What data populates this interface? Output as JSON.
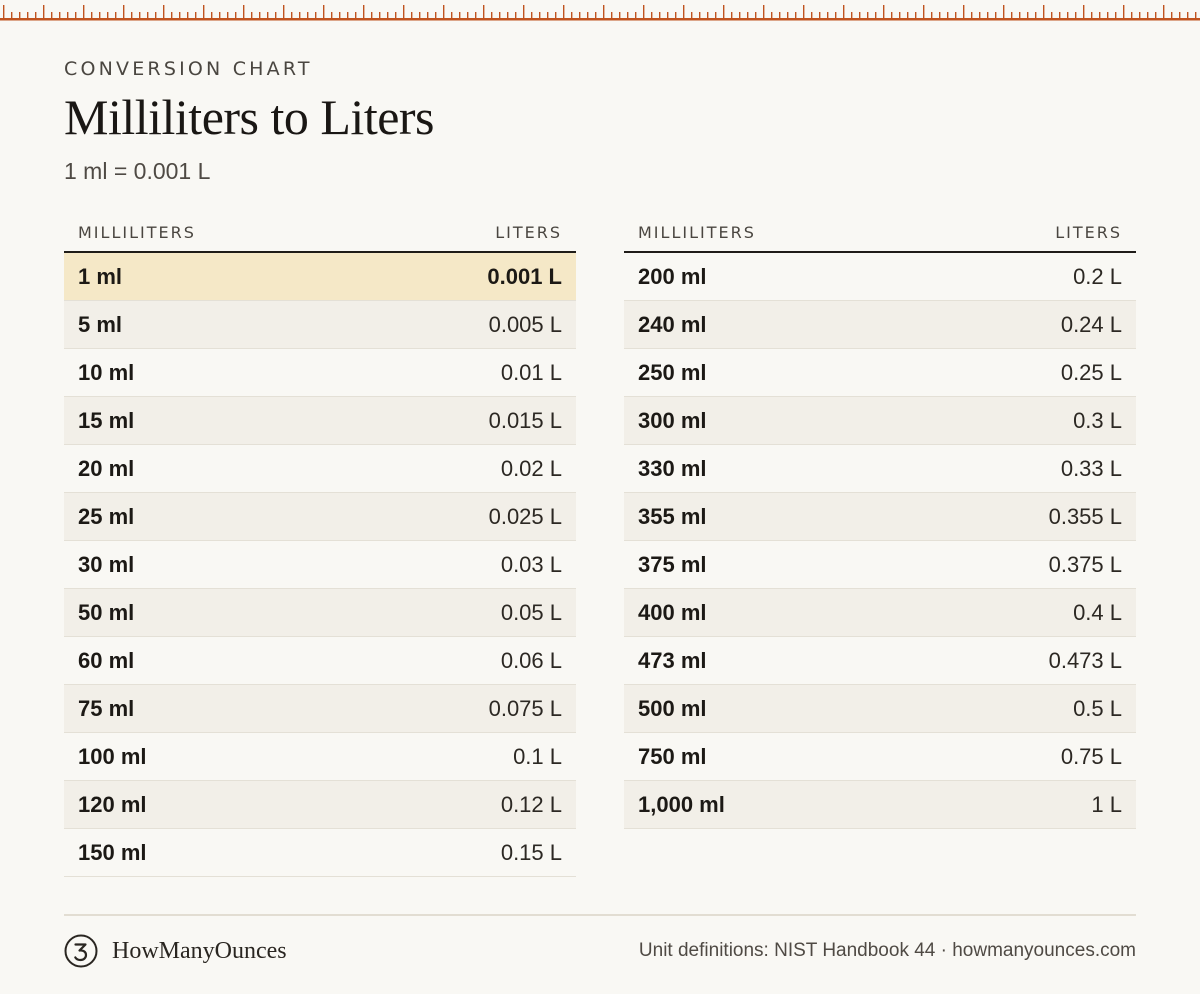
{
  "header": {
    "eyebrow": "CONVERSION CHART",
    "title": "Milliliters to Liters",
    "subtitle": "1 ml = 0.001 L"
  },
  "colors": {
    "accent": "#c0531f",
    "highlight": "#f5e8c7",
    "stripe": "#f2efe8",
    "background": "#f9f8f4"
  },
  "tables": {
    "left": {
      "col_ml": "MILLILITERS",
      "col_l": "LITERS",
      "rows": [
        {
          "ml": "1 ml",
          "l": "0.001 L"
        },
        {
          "ml": "5 ml",
          "l": "0.005 L"
        },
        {
          "ml": "10 ml",
          "l": "0.01 L"
        },
        {
          "ml": "15 ml",
          "l": "0.015 L"
        },
        {
          "ml": "20 ml",
          "l": "0.02 L"
        },
        {
          "ml": "25 ml",
          "l": "0.025 L"
        },
        {
          "ml": "30 ml",
          "l": "0.03 L"
        },
        {
          "ml": "50 ml",
          "l": "0.05 L"
        },
        {
          "ml": "60 ml",
          "l": "0.06 L"
        },
        {
          "ml": "75 ml",
          "l": "0.075 L"
        },
        {
          "ml": "100 ml",
          "l": "0.1 L"
        },
        {
          "ml": "120 ml",
          "l": "0.12 L"
        },
        {
          "ml": "150 ml",
          "l": "0.15 L"
        }
      ]
    },
    "right": {
      "col_ml": "MILLILITERS",
      "col_l": "LITERS",
      "rows": [
        {
          "ml": "200 ml",
          "l": "0.2 L"
        },
        {
          "ml": "240 ml",
          "l": "0.24 L"
        },
        {
          "ml": "250 ml",
          "l": "0.25 L"
        },
        {
          "ml": "300 ml",
          "l": "0.3 L"
        },
        {
          "ml": "330 ml",
          "l": "0.33 L"
        },
        {
          "ml": "355 ml",
          "l": "0.355 L"
        },
        {
          "ml": "375 ml",
          "l": "0.375 L"
        },
        {
          "ml": "400 ml",
          "l": "0.4 L"
        },
        {
          "ml": "473 ml",
          "l": "0.473 L"
        },
        {
          "ml": "500 ml",
          "l": "0.5 L"
        },
        {
          "ml": "750 ml",
          "l": "0.75 L"
        },
        {
          "ml": "1,000 ml",
          "l": "1 L"
        }
      ]
    }
  },
  "footer": {
    "brand_name": "HowManyOunces",
    "brand_icon": "numeral-3-circle-icon",
    "note": "Unit definitions: NIST Handbook 44 · howmanyounces.com"
  }
}
